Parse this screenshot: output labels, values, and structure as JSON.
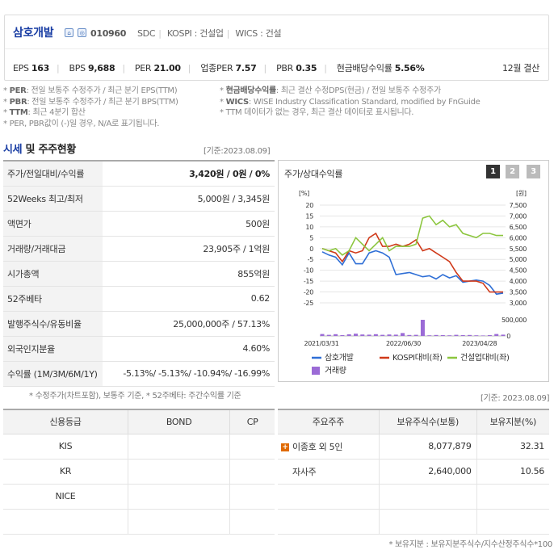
{
  "header": {
    "company_name": "삼호개발",
    "stock_code": "010960",
    "meta": [
      "SDC",
      "KOSPI : 건설업",
      "WICS : 건설"
    ],
    "metrics": [
      {
        "label": "EPS",
        "value": "163"
      },
      {
        "label": "BPS",
        "value": "9,688"
      },
      {
        "label": "PER",
        "value": "21.00"
      },
      {
        "label": "업종PER",
        "value": "7.57"
      },
      {
        "label": "PBR",
        "value": "0.35"
      },
      {
        "label": "현금배당수익률",
        "value": "5.56%"
      }
    ],
    "fiscal": "12월 결산"
  },
  "notes": {
    "left": [
      {
        "key": "PER",
        "text": ": 전일 보통주 수정주가 / 최근 분기 EPS(TTM)"
      },
      {
        "key": "PBR",
        "text": ": 전일 보통주 수정주가 / 최근 분기 BPS(TTM)"
      },
      {
        "key": "TTM",
        "text": ": 최근 4분기 합산"
      },
      {
        "key": "",
        "text": "PER, PBR값이 (-)일 경우, N/A로 표기됩니다."
      }
    ],
    "right": [
      {
        "key": "현금배당수익률",
        "text": ": 최근 결산 수정DPS(현금) / 전일 보통주 수정주가"
      },
      {
        "key": "WICS",
        "text": ": WISE Industry Classification Standard, modified by FnGuide"
      },
      {
        "key": "",
        "text": "TTM 데이터가 없는 경우, 최근 결산 데이터로 표시됩니다."
      }
    ]
  },
  "price_section": {
    "title_part1": "시세",
    "title_part2": " 및 주주현황",
    "as_of": "[기준:2023.08.09]",
    "rows": [
      {
        "label": "주가/전일대비/수익률",
        "value": "3,420원 / 0원 / 0%"
      },
      {
        "label": "52Weeks 최고/최저",
        "value": "5,000원 / 3,345원"
      },
      {
        "label": "액면가",
        "value": "500원"
      },
      {
        "label": "거래량/거래대금",
        "value": "23,905주 / 1억원"
      },
      {
        "label": "시가총액",
        "value": "855억원"
      },
      {
        "label": "52주베타",
        "value": "0.62"
      },
      {
        "label": "발행주식수/유동비율",
        "value": "25,000,000주 / 57.13%"
      },
      {
        "label": "외국인지분율",
        "value": "4.60%"
      },
      {
        "label": "수익률 (1M/3M/6M/1Y)",
        "value": "-5.13%/ -5.13%/ -10.94%/ -16.99%"
      }
    ],
    "note": "* 수정주가(차트포함), 보통주 기준, * 52주베타: 주간수익률 기준"
  },
  "chart_panel": {
    "title": "주가/상대수익률",
    "tabs": [
      "1",
      "2",
      "3"
    ]
  },
  "chart_data": {
    "type": "line",
    "left_unit": "[%]",
    "right_unit": "[원]",
    "left_ticks": [
      "20",
      "15",
      "10",
      "5",
      "0",
      "-5",
      "-10",
      "-15",
      "-20",
      "-25"
    ],
    "left_range": [
      -25,
      20
    ],
    "right_ticks": [
      "7,500",
      "7,000",
      "6,500",
      "6,000",
      "5,500",
      "5,000",
      "4,500",
      "4,000",
      "3,500",
      "3,000"
    ],
    "right_range": [
      3000,
      7500
    ],
    "volume_ticks": [
      "500,000",
      "0"
    ],
    "volume_range": [
      0,
      500000
    ],
    "x_labels": [
      "2021/03/31",
      "2022/06/30",
      "2023/04/28"
    ],
    "series": [
      {
        "name": "삼호개발",
        "color": "#2f6fd6",
        "axis": "right",
        "values": [
          5350,
          5200,
          5100,
          4750,
          5300,
          4800,
          4800,
          5300,
          5400,
          5300,
          5100,
          4300,
          4350,
          4400,
          4300,
          4200,
          4250,
          4100,
          4300,
          4150,
          4250,
          3950,
          4000,
          4050,
          4000,
          3800,
          3400,
          3450
        ]
      },
      {
        "name": "KOSPI대비(좌)",
        "color": "#d03a1a",
        "axis": "left",
        "values": [
          0,
          -1,
          -2,
          -6,
          -1,
          -2,
          -1,
          5,
          7,
          1,
          1,
          2,
          1,
          2,
          4,
          -1,
          0,
          -2,
          -4,
          -6,
          -11,
          -15,
          -15,
          -15,
          -16,
          -20,
          -20,
          -20
        ]
      },
      {
        "name": "건설업대비(좌)",
        "color": "#8cc63f",
        "axis": "left",
        "values": [
          0,
          -1,
          0,
          -3,
          -1,
          5,
          2,
          -1,
          2,
          5,
          -1,
          1,
          1,
          1,
          2,
          14,
          15,
          11,
          13,
          10,
          11,
          7,
          6,
          5,
          7,
          7,
          6,
          6
        ]
      },
      {
        "name": "거래량",
        "color": "#9b6bd6",
        "axis": "volume",
        "values": [
          60000,
          35000,
          55000,
          25000,
          50000,
          70000,
          45000,
          40000,
          55000,
          35000,
          45000,
          40000,
          90000,
          30000,
          35000,
          500000,
          20000,
          30000,
          25000,
          20000,
          35000,
          25000,
          30000,
          20000,
          15000,
          25000,
          60000,
          40000
        ]
      }
    ]
  },
  "credit": {
    "headers": [
      "신용등급",
      "BOND",
      "CP"
    ],
    "rows": [
      [
        "KIS",
        "",
        ""
      ],
      [
        "KR",
        "",
        ""
      ],
      [
        "NICE",
        "",
        ""
      ],
      [
        "",
        "",
        ""
      ]
    ]
  },
  "holders": {
    "as_of": "[기준: 2023.08.09]",
    "headers": [
      "주요주주",
      "보유주식수(보통)",
      "보유지분(%)"
    ],
    "rows": [
      {
        "name": "이종호 외 5인",
        "shares": "8,077,879",
        "pct": "32.31"
      },
      {
        "name": "자사주",
        "shares": "2,640,000",
        "pct": "10.56"
      },
      {
        "name": "",
        "shares": "",
        "pct": ""
      },
      {
        "name": "",
        "shares": "",
        "pct": ""
      }
    ],
    "note": "* 보유지분 : 보유지분주식수/지수산정주식수*100"
  }
}
